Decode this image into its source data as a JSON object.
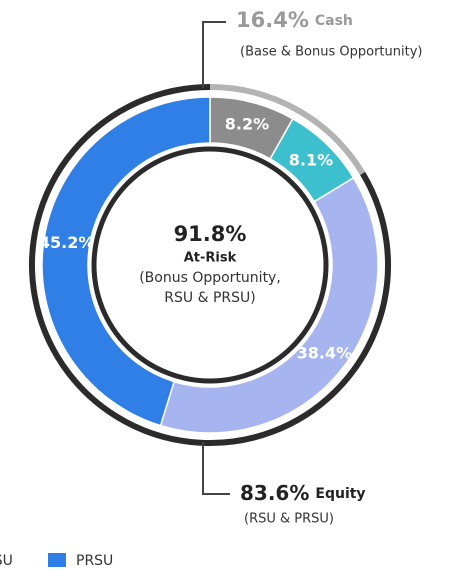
{
  "chart_data": {
    "type": "pie",
    "values": [
      8.2,
      8.1,
      38.4,
      45.2
    ],
    "value_labels": [
      "8.2%",
      "8.1%",
      "38.4%",
      "45.2%"
    ],
    "colors": [
      "#8c8c8c",
      "#3cc0cd",
      "#a6b5f0",
      "#2f7fe6"
    ],
    "legend": [
      {
        "name": "RSU",
        "color": "#a6b5f0"
      },
      {
        "name": "PRSU",
        "color": "#2f7fe6"
      }
    ],
    "center_text": {
      "value": 91.8,
      "value_label": "91.8%",
      "title": "At-Risk",
      "lines": [
        "(Bonus Opportunity,",
        "RSU & PRSU)"
      ]
    },
    "annotations": [
      {
        "value": 16.4,
        "value_label": "16.4%",
        "label": "Cash",
        "sublabel": "(Base & Bonus Opportunity)",
        "color": "#b3b3b3"
      },
      {
        "value": 83.6,
        "value_label": "83.6%",
        "label": "Equity",
        "sublabel": "(RSU & PRSU)",
        "color": "#2b2b2b"
      }
    ]
  }
}
